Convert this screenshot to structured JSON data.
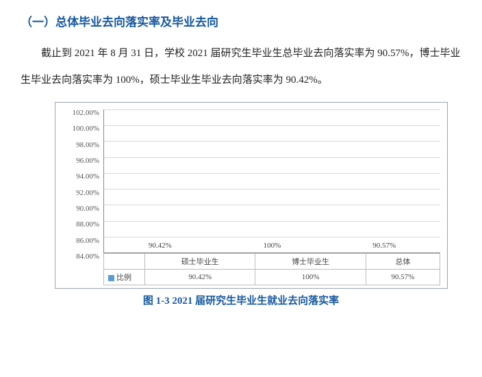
{
  "section": {
    "title": "（一）总体毕业去向落实率及毕业去向",
    "paragraph": "截止到 2021 年 8 月 31 日，学校 2021 届研究生毕业生总毕业去向落实率为 90.57%，博士毕业生毕业去向落实率为 100%，硕士毕业生毕业去向落实率为 90.42%。"
  },
  "chart": {
    "type": "bar",
    "categories": [
      "硕士毕业生",
      "博士毕业生",
      "总体"
    ],
    "values": [
      90.42,
      100,
      90.57
    ],
    "value_labels": [
      "90.42%",
      "100%",
      "90.57%"
    ],
    "bar_color": "#5b9bd5",
    "yaxis": {
      "min": 84,
      "max": 102,
      "ticks": [
        102,
        100,
        98,
        96,
        94,
        92,
        90,
        88,
        86,
        84
      ],
      "tick_labels": [
        "102.00%",
        "100.00%",
        "98.00%",
        "96.00%",
        "94.00%",
        "92.00%",
        "90.00%",
        "88.00%",
        "86.00%",
        "84.00%"
      ]
    },
    "legend_label": "比例",
    "table_row_values": [
      "90.42%",
      "100%",
      "90.57%"
    ],
    "grid_color": "#d7d7d7",
    "background_color": "#ffffff",
    "border_color": "#9aa5b1",
    "tick_fontsize": 11
  },
  "caption": "图 1-3   2021 届研究生毕业生就业去向落实率"
}
